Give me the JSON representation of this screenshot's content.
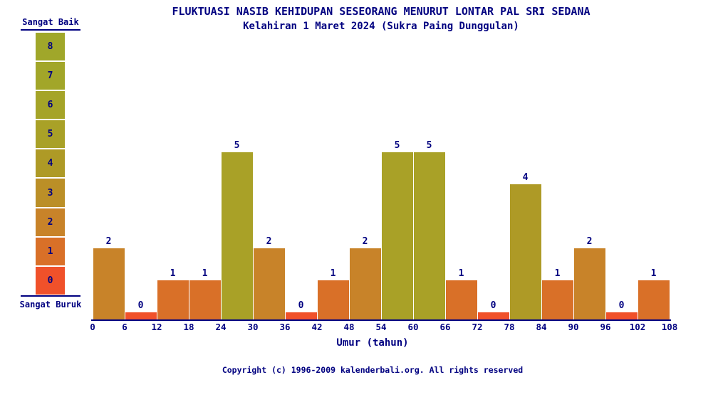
{
  "title": "FLUKTUASI NASIB KEHIDUPAN SESEORANG MENURUT LONTAR PAL SRI SEDANA",
  "subtitle": "Kelahiran 1 Maret 2024 (Sukra Paing Dunggulan)",
  "legend": {
    "top_label": "Sangat Baik",
    "bottom_label": "Sangat Buruk",
    "levels": [
      8,
      7,
      6,
      5,
      4,
      3,
      2,
      1,
      0
    ]
  },
  "chart_data": {
    "type": "bar",
    "title": "FLUKTUASI NASIB KEHIDUPAN SESEORANG MENURUT LONTAR PAL SRI SEDANA",
    "subtitle": "Kelahiran 1 Maret 2024 (Sukra Paing Dunggulan)",
    "xlabel": "Umur (tahun)",
    "x_ticks": [
      0,
      6,
      12,
      18,
      24,
      30,
      36,
      42,
      48,
      54,
      60,
      66,
      72,
      78,
      84,
      90,
      96,
      102,
      108
    ],
    "categories": [
      "0-6",
      "6-12",
      "12-18",
      "18-24",
      "24-30",
      "30-36",
      "36-42",
      "42-48",
      "48-54",
      "54-60",
      "60-66",
      "66-72",
      "72-78",
      "78-84",
      "84-90",
      "90-96",
      "96-102",
      "102-108"
    ],
    "values": [
      2,
      0,
      1,
      1,
      5,
      2,
      0,
      1,
      2,
      5,
      5,
      1,
      0,
      4,
      1,
      2,
      0,
      1
    ],
    "ylim": [
      0,
      8
    ],
    "scale_max_label": "Sangat Baik",
    "scale_min_label": "Sangat Buruk",
    "grid": false,
    "legend_position": "left"
  },
  "footer": {
    "copyright": "Copyright (c) 1996-2009 kalenderbali.org. All rights reserved"
  },
  "colors": {
    "text": "#000080",
    "background": "#ffffff",
    "level_colors": [
      "#f0512a",
      "#d97028",
      "#c88329",
      "#bb8f27",
      "#ae9a26",
      "#a9a127",
      "#a5a428",
      "#a2a629",
      "#a0a72a"
    ]
  }
}
